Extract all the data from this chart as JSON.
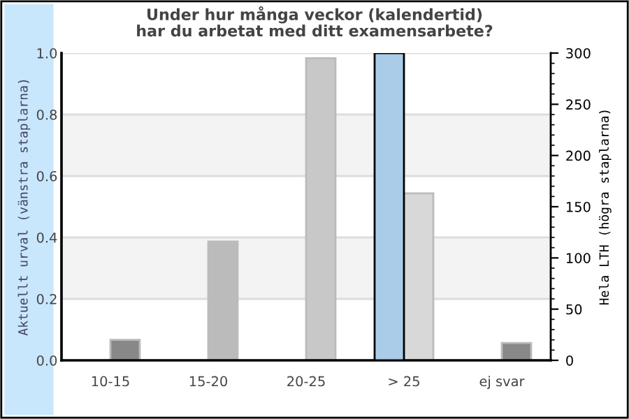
{
  "chart_data": {
    "type": "bar",
    "title": "Under hur många veckor (kalendertid)\nhar du arbetat med ditt examensarbete?",
    "xlabel": null,
    "ylabel": "Aktuellt urval (vänstra staplarna)",
    "y2label": "Hela LTH (högra staplarna)",
    "categories": [
      "10-15",
      "15-20",
      "20-25",
      "> 25",
      "ej svar"
    ],
    "series": [
      {
        "color": "#aacce8",
        "values": [
          null,
          null,
          null,
          1.0,
          null
        ]
      },
      {
        "axis": "y2",
        "colors": [
          "#888888",
          "#bbbbbb",
          "#c8c8c8",
          "#d8d8d8",
          "#888888"
        ],
        "values": [
          20,
          116,
          295,
          163,
          17
        ]
      }
    ],
    "ylim": [
      0,
      1
    ],
    "yticks": [
      {
        "value": 0,
        "label": "0.0"
      },
      0.2,
      0.4,
      0.6,
      0.8,
      {
        "value": 1,
        "label": "1.0"
      }
    ],
    "y2lim": [
      0,
      300
    ],
    "y2ticks": [
      0,
      50,
      100,
      150,
      200,
      250,
      300
    ],
    "bands": [
      {
        "axis": "y",
        "from": 0.2,
        "to": 0.4,
        "color": "#f3f3f3"
      },
      {
        "axis": "y",
        "from": 0.6,
        "to": 0.8,
        "color": "#f3f3f3"
      }
    ],
    "grid": "y"
  }
}
